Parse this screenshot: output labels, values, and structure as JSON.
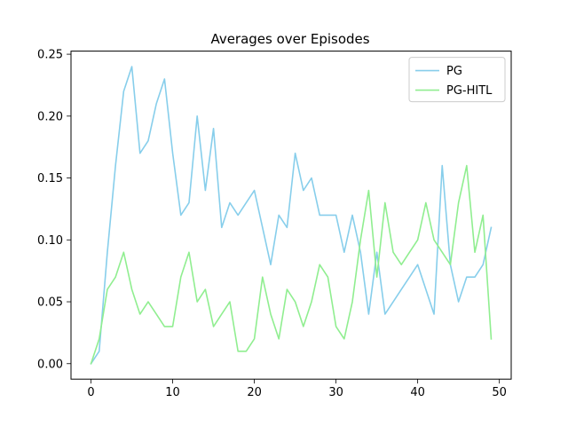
{
  "chart_data": {
    "type": "line",
    "title": "Averages over Episodes",
    "xlabel": "",
    "ylabel": "",
    "xlim": [
      -2.45,
      51.45
    ],
    "ylim": [
      -0.0125,
      0.2525
    ],
    "xticks": [
      0,
      10,
      20,
      30,
      40,
      50
    ],
    "yticks": [
      0.0,
      0.05,
      0.1,
      0.15,
      0.2,
      0.25
    ],
    "xtick_labels": [
      "0",
      "10",
      "20",
      "30",
      "40",
      "50"
    ],
    "ytick_labels": [
      "0.00",
      "0.05",
      "0.10",
      "0.15",
      "0.20",
      "0.25"
    ],
    "grid": false,
    "legend_position": "top-right",
    "x": [
      0,
      1,
      2,
      3,
      4,
      5,
      6,
      7,
      8,
      9,
      10,
      11,
      12,
      13,
      14,
      15,
      16,
      17,
      18,
      19,
      20,
      21,
      22,
      23,
      24,
      25,
      26,
      27,
      28,
      29,
      30,
      31,
      32,
      33,
      34,
      35,
      36,
      37,
      38,
      39,
      40,
      41,
      42,
      43,
      44,
      45,
      46,
      47,
      48,
      49
    ],
    "series": [
      {
        "name": "PG",
        "color": "#87CEEB",
        "values": [
          0.0,
          0.01,
          0.09,
          0.16,
          0.22,
          0.24,
          0.17,
          0.18,
          0.21,
          0.23,
          0.17,
          0.12,
          0.13,
          0.2,
          0.14,
          0.19,
          0.11,
          0.13,
          0.12,
          0.13,
          0.14,
          0.11,
          0.08,
          0.12,
          0.11,
          0.17,
          0.14,
          0.15,
          0.12,
          0.12,
          0.12,
          0.09,
          0.12,
          0.09,
          0.04,
          0.09,
          0.04,
          0.05,
          0.06,
          0.07,
          0.08,
          0.06,
          0.04,
          0.16,
          0.08,
          0.05,
          0.07,
          0.07,
          0.08,
          0.11
        ]
      },
      {
        "name": "PG-HITL",
        "color": "#90EE90",
        "values": [
          0.0,
          0.02,
          0.06,
          0.07,
          0.09,
          0.06,
          0.04,
          0.05,
          0.04,
          0.03,
          0.03,
          0.07,
          0.09,
          0.05,
          0.06,
          0.03,
          0.04,
          0.05,
          0.01,
          0.01,
          0.02,
          0.07,
          0.04,
          0.02,
          0.06,
          0.05,
          0.03,
          0.05,
          0.08,
          0.07,
          0.03,
          0.02,
          0.05,
          0.1,
          0.14,
          0.07,
          0.13,
          0.09,
          0.08,
          0.09,
          0.1,
          0.13,
          0.1,
          0.09,
          0.08,
          0.13,
          0.16,
          0.09,
          0.12,
          0.02
        ]
      }
    ]
  }
}
